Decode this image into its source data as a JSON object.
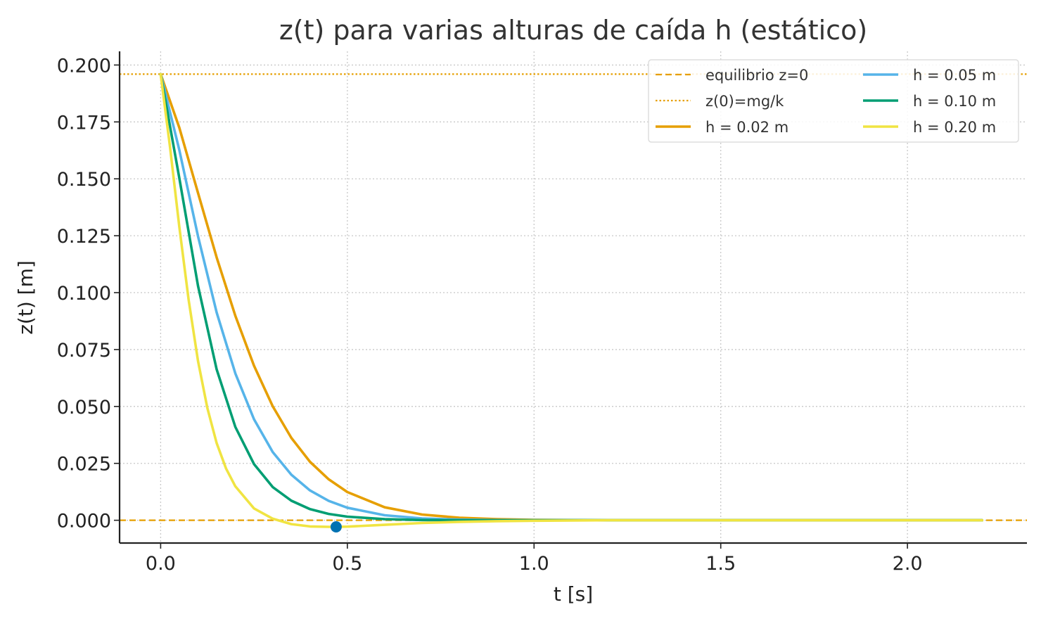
{
  "chart_data": {
    "type": "line",
    "title": "z(t) para varias alturas de caída h (estático)",
    "xlabel": "t [s]",
    "ylabel": "z(t) [m]",
    "xlim": [
      -0.11,
      2.32
    ],
    "ylim": [
      -0.01,
      0.206
    ],
    "xticks": [
      0.0,
      0.5,
      1.0,
      1.5,
      2.0
    ],
    "xtick_labels": [
      "0.0",
      "0.5",
      "1.0",
      "1.5",
      "2.0"
    ],
    "yticks": [
      0.0,
      0.025,
      0.05,
      0.075,
      0.1,
      0.125,
      0.15,
      0.175,
      0.2
    ],
    "ytick_labels": [
      "0.000",
      "0.025",
      "0.050",
      "0.075",
      "0.100",
      "0.125",
      "0.150",
      "0.175",
      "0.200"
    ],
    "grid": true,
    "legend_position": "top-right",
    "legend_columns": 2,
    "reference_lines": [
      {
        "name": "equilibrio z=0",
        "y": 0.0,
        "style": "dashed",
        "color": "#E69F00"
      },
      {
        "name": "z(0)=mg/k",
        "y": 0.196,
        "style": "dotted",
        "color": "#E69F00"
      }
    ],
    "series": [
      {
        "name": "h = 0.02 m",
        "color": "#E69F00",
        "x": [
          0.0,
          0.05,
          0.1,
          0.15,
          0.2,
          0.25,
          0.3,
          0.35,
          0.4,
          0.45,
          0.5,
          0.6,
          0.7,
          0.8,
          0.9,
          1.0,
          1.2,
          1.5,
          1.8,
          2.2
        ],
        "y": [
          0.196,
          0.1725,
          0.1438,
          0.1155,
          0.0898,
          0.0679,
          0.0501,
          0.0362,
          0.0257,
          0.018,
          0.0124,
          0.0057,
          0.0025,
          0.0011,
          0.0005,
          0.0002,
          0.0,
          0.0,
          0.0,
          0.0
        ]
      },
      {
        "name": "h = 0.05 m",
        "color": "#56B4E9",
        "x": [
          0.0,
          0.05,
          0.1,
          0.15,
          0.2,
          0.25,
          0.3,
          0.35,
          0.4,
          0.45,
          0.5,
          0.6,
          0.7,
          0.8,
          0.9,
          1.0,
          1.2,
          1.5,
          1.8,
          2.2
        ],
        "y": [
          0.196,
          0.1627,
          0.1248,
          0.0913,
          0.0645,
          0.0444,
          0.03,
          0.02,
          0.0131,
          0.0085,
          0.0055,
          0.0022,
          0.0008,
          0.0003,
          0.0001,
          0.0,
          0.0,
          0.0,
          0.0,
          0.0
        ]
      },
      {
        "name": "h = 0.10 m",
        "color": "#009E73",
        "x": [
          0.0,
          0.05,
          0.1,
          0.15,
          0.2,
          0.25,
          0.3,
          0.35,
          0.4,
          0.45,
          0.5,
          0.6,
          0.7,
          0.8,
          0.9,
          1.0,
          1.2,
          1.5,
          1.8,
          2.2
        ],
        "y": [
          0.196,
          0.1504,
          0.103,
          0.0663,
          0.041,
          0.0247,
          0.0146,
          0.0086,
          0.0049,
          0.0028,
          0.0016,
          0.0005,
          0.0001,
          0.0,
          0.0,
          0.0,
          0.0,
          0.0,
          0.0,
          0.0
        ]
      },
      {
        "name": "h = 0.20 m",
        "color": "#F0E442",
        "x": [
          0.0,
          0.025,
          0.05,
          0.075,
          0.1,
          0.125,
          0.15,
          0.175,
          0.2,
          0.25,
          0.3,
          0.35,
          0.4,
          0.45,
          0.47,
          0.5,
          0.6,
          0.7,
          0.8,
          0.9,
          1.0,
          1.2,
          1.5,
          1.8,
          2.2
        ],
        "y": [
          0.196,
          0.164,
          0.129,
          0.0968,
          0.07,
          0.0493,
          0.0339,
          0.0228,
          0.0149,
          0.0052,
          0.0007,
          -0.0017,
          -0.0027,
          -0.0029,
          -0.0029,
          -0.0028,
          -0.002,
          -0.0012,
          -0.0007,
          -0.0004,
          -0.0002,
          0.0,
          0.0,
          0.0,
          0.0
        ]
      }
    ],
    "markers": [
      {
        "x": 0.47,
        "y": -0.0029,
        "color": "#0072B2"
      }
    ]
  }
}
